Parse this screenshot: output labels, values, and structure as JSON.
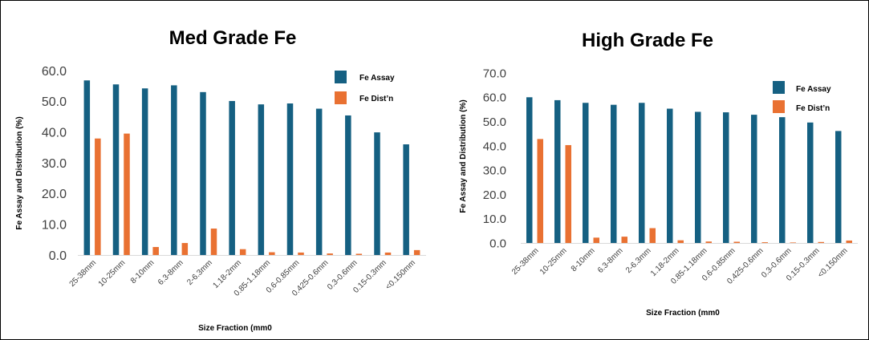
{
  "colors": {
    "assay": "#156082",
    "dist": "#E97132"
  },
  "chart_data": [
    {
      "type": "bar",
      "title": "Med Grade Fe",
      "xlabel": "Size Fraction (mm0",
      "ylabel": "Fe Assay and Distribution (%)",
      "ylim": [
        0,
        60
      ],
      "yticks": [
        "0.0",
        "10.0",
        "20.0",
        "30.0",
        "40.0",
        "50.0",
        "60.0"
      ],
      "categories": [
        "25-38mm",
        "10-25mm",
        "8-10mm",
        "6.3-8mm",
        "2-6.3mm",
        "1.18-2mm",
        "0.85-1.18mm",
        "0.6-0.85mm",
        "0.425-0.6mm",
        "0.3-0.6mm",
        "0.15-0.3mm",
        "<0.150mm"
      ],
      "series": [
        {
          "name": "Fe Assay",
          "values": [
            56.8,
            55.5,
            54.2,
            55.2,
            53.0,
            50.1,
            49.0,
            49.3,
            47.6,
            45.4,
            39.9,
            36.0
          ]
        },
        {
          "name": "Fe Dist’n",
          "values": [
            37.9,
            39.5,
            2.6,
            3.9,
            8.6,
            1.9,
            0.9,
            0.8,
            0.5,
            0.4,
            0.8,
            1.6
          ]
        }
      ],
      "grid": false,
      "legend": "top-right"
    },
    {
      "type": "bar",
      "title": "High Grade Fe",
      "xlabel": "Size Fraction (mm0",
      "ylabel": "Fe Assay and Distribution (%)",
      "ylim": [
        0,
        70
      ],
      "yticks": [
        "0.0",
        "10.0",
        "20.0",
        "30.0",
        "40.0",
        "50.0",
        "60.0",
        "70.0"
      ],
      "categories": [
        "25-38mm",
        "10-25mm",
        "8-10mm",
        "6.3-8mm",
        "2-6.3mm",
        "1.18-2mm",
        "0.85-1.18mm",
        "0.6-0.85mm",
        "0.425-0.6mm",
        "0.3-0.6mm",
        "0.15-0.3mm",
        "<0.150mm"
      ],
      "series": [
        {
          "name": "Fe Assay",
          "values": [
            60.0,
            58.8,
            57.7,
            56.9,
            57.7,
            55.3,
            54.0,
            53.8,
            52.8,
            51.8,
            49.6,
            46.1
          ]
        },
        {
          "name": "Fe Dist’n",
          "values": [
            42.8,
            40.3,
            2.2,
            2.6,
            6.1,
            1.1,
            0.6,
            0.5,
            0.3,
            0.2,
            0.4,
            1.0
          ]
        }
      ],
      "grid": false,
      "legend": "top-right"
    }
  ]
}
